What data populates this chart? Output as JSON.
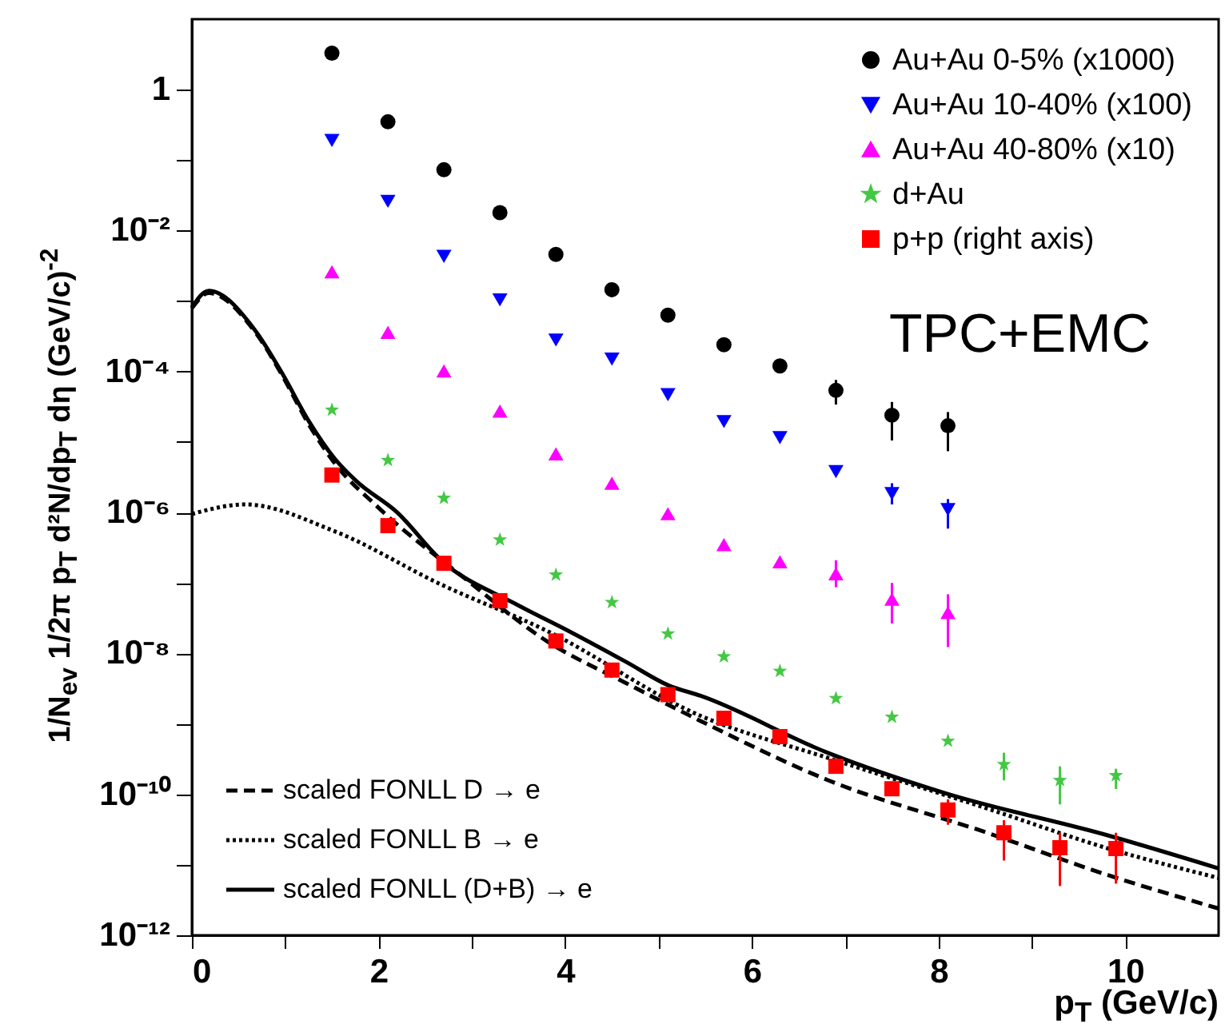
{
  "chart_data": {
    "type": "scatter",
    "xlabel": "p$_{T}$ (GeV/c)",
    "ylabel": "1/N$_{ev}$ 1/2π p$_{T}$ d²N/dp$_{T}$ dη (GeV/c)$^{-2}$",
    "log": "y",
    "legend": "top right",
    "annotations": [
      "TPC+EMC"
    ],
    "xlim": [
      0,
      11
    ],
    "ylim": [
      1e-12,
      10
    ],
    "xticks": [
      0,
      {
        "value": 1,
        "label": null
      },
      2,
      {
        "value": 3,
        "label": null
      },
      4,
      {
        "value": 5,
        "label": null
      },
      6,
      {
        "value": 7,
        "label": null
      },
      8,
      {
        "value": 9,
        "label": null
      },
      10
    ],
    "yticks": [
      {
        "value": 1e-12,
        "label": "10⁻¹²"
      },
      {
        "value": 1e-11,
        "label": null
      },
      {
        "value": 1e-10,
        "label": "10⁻¹⁰"
      },
      {
        "value": 1e-09,
        "label": null
      },
      {
        "value": 1e-08,
        "label": "10⁻⁸"
      },
      {
        "value": 1e-07,
        "label": null
      },
      {
        "value": 1e-06,
        "label": "10⁻⁶"
      },
      {
        "value": 1e-05,
        "label": null
      },
      {
        "value": 0.0001,
        "label": "10⁻⁴"
      },
      {
        "value": 0.001,
        "label": null
      },
      {
        "value": 0.01,
        "label": "10⁻²"
      },
      {
        "value": 0.1,
        "label": null
      },
      1
    ],
    "series": [
      {
        "name": "Au+Au 0-5% (x1000)",
        "color": "#000000",
        "marker": "circle",
        "x": [
          1.5,
          2.1,
          2.7,
          3.3,
          3.9,
          4.5,
          5.1,
          5.7,
          6.3,
          6.9,
          7.5,
          8.1
        ],
        "values": [
          3.3,
          0.35,
          0.073,
          0.018,
          0.0046,
          0.00145,
          0.00063,
          0.00024,
          0.00012,
          5.4e-05,
          2.4e-05,
          1.7e-05
        ],
        "errors": [
          null,
          null,
          null,
          null,
          null,
          null,
          null,
          null,
          null,
          [
            3.4e-05,
            7.6e-05
          ],
          [
            1.05e-05,
            3.7e-05
          ],
          [
            7.4e-06,
            2.66e-05
          ]
        ]
      },
      {
        "name": "Au+Au 10-40% (x100)",
        "color": "#0000ff",
        "marker": "triangle-down",
        "x": [
          1.5,
          2.1,
          2.7,
          3.3,
          3.9,
          4.5,
          5.1,
          5.7,
          6.3,
          6.9,
          7.5,
          8.1
        ],
        "values": [
          0.19,
          0.026,
          0.0043,
          0.00104,
          0.00028,
          0.00015,
          4.7e-05,
          1.95e-05,
          1.15e-05,
          3.8e-06,
          1.85e-06,
          1.1e-06
        ],
        "errors": [
          null,
          null,
          null,
          null,
          null,
          null,
          null,
          null,
          null,
          null,
          [
            1.3e-06,
            2.6e-06
          ],
          [
            5.9e-07,
            1.55e-06
          ]
        ]
      },
      {
        "name": "Au+Au 40-80% (x10)",
        "color": "#ff00ff",
        "marker": "triangle",
        "x": [
          1.5,
          2.1,
          2.7,
          3.3,
          3.9,
          4.5,
          5.1,
          5.7,
          6.3,
          6.9,
          7.5,
          8.1
        ],
        "values": [
          0.0026,
          0.00036,
          0.000102,
          2.75e-05,
          6.8e-06,
          2.6e-06,
          9.6e-07,
          3.5e-07,
          2e-07,
          1.35e-07,
          5.9e-08,
          3.8e-08
        ],
        "errors": [
          null,
          null,
          null,
          null,
          null,
          null,
          null,
          null,
          null,
          [
            8.7e-08,
            2.1e-07
          ],
          [
            2.66e-08,
            1e-07
          ],
          [
            1.23e-08,
            6.9e-08
          ]
        ]
      },
      {
        "name": "d+Au",
        "color": "#44c844",
        "marker": "star",
        "x": [
          1.5,
          2.1,
          2.7,
          3.3,
          3.9,
          4.5,
          5.1,
          5.7,
          6.3,
          6.9,
          7.5,
          8.1,
          8.7,
          9.3,
          9.9
        ],
        "values": [
          2.85e-05,
          5.5e-06,
          1.6e-06,
          4.1e-07,
          1.3e-07,
          5.3e-08,
          1.9e-08,
          9e-09,
          5.6e-09,
          2.3e-09,
          1.25e-09,
          5.7e-10,
          2.66e-10,
          1.58e-10,
          1.85e-10
        ],
        "errors": [
          null,
          null,
          null,
          null,
          null,
          null,
          null,
          null,
          null,
          null,
          null,
          null,
          [
            1.58e-10,
            3.9e-10
          ],
          [
            7.2e-11,
            2.5e-10
          ],
          [
            1.19e-10,
            2.3e-10
          ]
        ]
      },
      {
        "name": "p+p (right axis)",
        "color": "#ff0000",
        "marker": "square",
        "x": [
          1.5,
          2.1,
          2.7,
          3.3,
          3.9,
          4.5,
          5.1,
          5.7,
          6.3,
          6.9,
          7.5,
          8.1,
          8.7,
          9.3,
          9.9
        ],
        "values": [
          3.4e-06,
          6.5e-07,
          1.9e-07,
          5.6e-08,
          1.5e-08,
          5.8e-09,
          2.6e-09,
          1.2e-09,
          6.6e-10,
          2.5e-10,
          1.2e-10,
          6e-11,
          2.85e-11,
          1.75e-11,
          1.7e-11
        ],
        "errors": [
          null,
          null,
          null,
          null,
          null,
          null,
          null,
          null,
          null,
          null,
          null,
          [
            3.7e-11,
            8.5e-11
          ],
          [
            1.15e-11,
            4.3e-11
          ],
          [
            5e-12,
            2.85e-11
          ],
          [
            5.4e-12,
            2.85e-11
          ]
        ]
      },
      {
        "name": "scaled FONLL D → e",
        "type": "line",
        "line_style": "dashed",
        "color": "#000000",
        "x": [
          0,
          0.18,
          0.68,
          0.97,
          1.25,
          1.53,
          1.99,
          2.9,
          3.8,
          4.65,
          5.45,
          6.81,
          8.52,
          9.82,
          11
        ],
        "values": [
          0.00079,
          0.0013,
          0.00036,
          8.7e-05,
          1.8e-05,
          5e-06,
          1.2e-06,
          1.23e-07,
          1.5e-08,
          3.8e-09,
          1.1e-09,
          1.6e-10,
          2.85e-11,
          7.1e-12,
          2.4e-12
        ]
      },
      {
        "name": "scaled FONLL B → e",
        "type": "line",
        "line_style": "dotted",
        "color": "#000000",
        "x": [
          0,
          0.57,
          1.53,
          2.67,
          3.8,
          5.45,
          6.81,
          8.52,
          9.82,
          11
        ],
        "values": [
          9.5e-07,
          1.3e-06,
          5.4e-07,
          9.5e-08,
          2.1e-08,
          1.3e-09,
          3.3e-10,
          6.3e-11,
          1.7e-11,
          6.5e-12
        ]
      },
      {
        "name": "scaled FONLL (D+B) → e",
        "type": "line",
        "line_style": "solid",
        "color": "#000000",
        "x": [
          0,
          0.18,
          0.68,
          0.97,
          1.25,
          1.53,
          1.76,
          2.2,
          2.67,
          3.46,
          4.03,
          4.65,
          5.11,
          5.45,
          6.81,
          8.06,
          9.82,
          11
        ],
        "values": [
          0.00081,
          0.0014,
          0.00038,
          9.3e-05,
          2e-05,
          5.8e-06,
          2.8e-06,
          1e-06,
          2.1e-07,
          5.1e-08,
          2.1e-08,
          7.6e-09,
          3.5e-09,
          2.5e-09,
          3.9e-10,
          1.05e-10,
          2.6e-11,
          8.9e-12
        ]
      }
    ]
  }
}
